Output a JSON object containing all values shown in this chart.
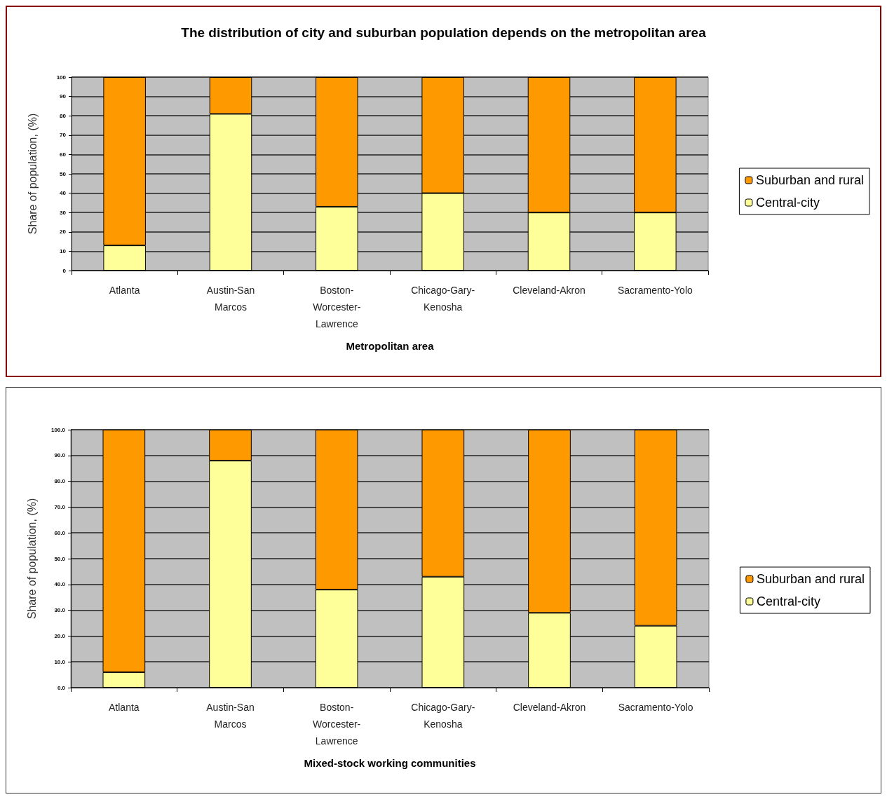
{
  "chart_data": [
    {
      "type": "bar",
      "title": "The distribution of city and suburban population depends on the metropolitan area",
      "xlabel": "Metropolitan area",
      "ylabel": "Share of population, (%)",
      "categories": [
        "Atlanta",
        "Austin-San Marcos",
        "Boston-Worcester-Lawrence",
        "Chicago-Gary-Kenosha",
        "Cleveland-Akron",
        "Sacramento-Yolo"
      ],
      "stacked": true,
      "series": [
        {
          "name": "Central-city",
          "color": "#ffff99",
          "values": [
            13,
            81,
            33,
            40,
            30,
            30
          ]
        },
        {
          "name": "Suburban and rural",
          "color": "#ff9900",
          "values": [
            87,
            19,
            67,
            60,
            70,
            70
          ]
        }
      ],
      "ylim": [
        0,
        100
      ],
      "yticks": [
        0,
        10,
        20,
        30,
        40,
        50,
        60,
        70,
        80,
        90,
        100
      ],
      "grid": "y",
      "legend": "right"
    },
    {
      "type": "bar",
      "xlabel": "Mixed-stock working communities",
      "ylabel": "Share of population, (%)",
      "categories": [
        "Atlanta",
        "Austin-San Marcos",
        "Boston-Worcester-Lawrence",
        "Chicago-Gary-Kenosha",
        "Cleveland-Akron",
        "Sacramento-Yolo"
      ],
      "stacked": true,
      "series": [
        {
          "name": "Central-city",
          "color": "#ffff99",
          "values": [
            6,
            88,
            38,
            43,
            29,
            24
          ]
        },
        {
          "name": "Suburban and rural",
          "color": "#ff9900",
          "values": [
            94,
            12,
            62,
            57,
            71,
            76
          ]
        }
      ],
      "ylim": [
        0,
        100
      ],
      "yticks": [
        {
          "value": 0,
          "label": "0.0"
        },
        {
          "value": 10,
          "label": "10.0"
        },
        {
          "value": 20,
          "label": "20.0"
        },
        {
          "value": 30,
          "label": "30.0"
        },
        {
          "value": 40,
          "label": "40.0"
        },
        {
          "value": 50,
          "label": "50.0"
        },
        {
          "value": 60,
          "label": "60.0"
        },
        {
          "value": 70,
          "label": "70.0"
        },
        {
          "value": 80,
          "label": "80.0"
        },
        {
          "value": 90,
          "label": "90.0"
        },
        {
          "value": 100,
          "label": "100.0"
        }
      ],
      "grid": "y",
      "legend": "right"
    }
  ]
}
